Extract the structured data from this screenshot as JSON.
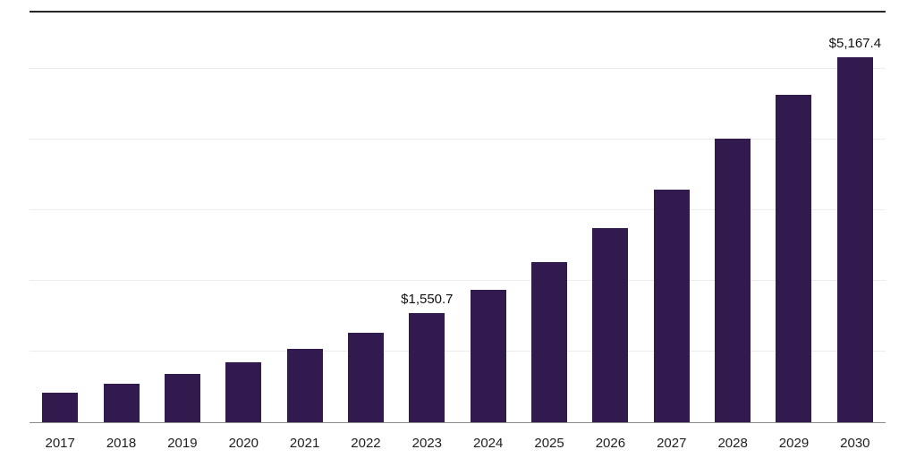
{
  "chart_data": {
    "type": "bar",
    "title": "",
    "xlabel": "",
    "ylabel": "",
    "categories": [
      "2017",
      "2018",
      "2019",
      "2020",
      "2021",
      "2022",
      "2023",
      "2024",
      "2025",
      "2026",
      "2027",
      "2028",
      "2029",
      "2030"
    ],
    "values": [
      420,
      547,
      687,
      852,
      1043,
      1272,
      1550.7,
      1870,
      2264,
      2748,
      3294,
      4020,
      4630,
      5167.4
    ],
    "data_labels": {
      "2023": "$1,550.7",
      "2030": "$5,167.4"
    },
    "bar_color": "#301a4e",
    "ylim": [
      0,
      5800
    ],
    "gridline_step": 1000,
    "grid": true,
    "legend": false
  }
}
